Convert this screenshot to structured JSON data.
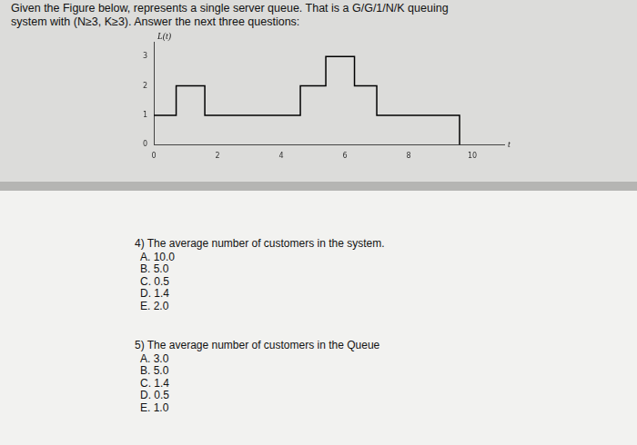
{
  "header": {
    "lines": [
      "Given the Figure below, represents a single server queue. That is a G/G/1/N/K queuing",
      "system with (N≥3, K≥3). Answer the next three questions:"
    ]
  },
  "chart_data": {
    "type": "line",
    "y_label": "L(t)",
    "x_label": "t",
    "x": [
      0,
      0.7,
      1.6,
      4.6,
      5.4,
      6.3,
      7,
      9.6
    ],
    "values": [
      1,
      2,
      1,
      2,
      3,
      2,
      1,
      0
    ],
    "color": "#000000",
    "line_style": "step",
    "grid": false,
    "xlim": [
      0,
      11
    ],
    "xticks": [
      0,
      2,
      4,
      6,
      8,
      10
    ],
    "ylim": [
      0,
      3.5
    ],
    "yticks": [
      0,
      1,
      2,
      3
    ]
  },
  "questions": [
    {
      "stem": "4) The average number of customers in the system.",
      "options": [
        "A. 10.0",
        "B. 5.0",
        "C. 0.5",
        "D. 1.4",
        "E. 2.0"
      ]
    },
    {
      "stem": "5) The average number of customers in the Queue",
      "options": [
        "A. 3.0",
        "B. 5.0",
        "C. 1.4",
        "D. 0.5",
        "E. 1.0"
      ]
    }
  ]
}
